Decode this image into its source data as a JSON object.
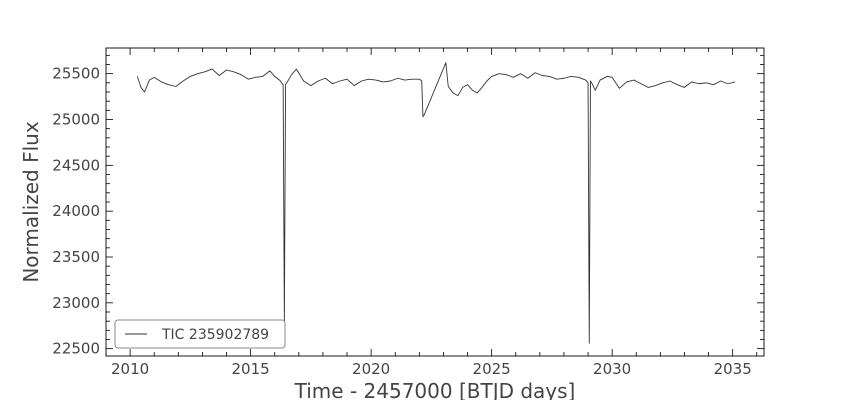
{
  "chart_data": {
    "type": "line",
    "title": "",
    "xlabel": "Time - 2457000 [BTJD days]",
    "ylabel": "Normalized Flux",
    "xlim": [
      2009.0,
      2036.3
    ],
    "ylim": [
      22420,
      25780
    ],
    "xticks": [
      2010,
      2015,
      2020,
      2025,
      2030,
      2035
    ],
    "yticks": [
      22500,
      23000,
      23500,
      24000,
      24500,
      25000,
      25500
    ],
    "grid": false,
    "legend": "lower-left",
    "line_color": "#333333",
    "series": [
      {
        "name": "TIC 235902789",
        "x": [
          2010.3,
          2010.45,
          2010.6,
          2010.8,
          2011.0,
          2011.3,
          2011.6,
          2011.9,
          2012.2,
          2012.5,
          2012.8,
          2013.1,
          2013.4,
          2013.7,
          2014.0,
          2014.3,
          2014.6,
          2014.9,
          2015.2,
          2015.5,
          2015.8,
          2016.0,
          2016.2,
          2016.35,
          2016.4,
          2016.45,
          2016.5,
          2016.7,
          2016.9,
          2017.2,
          2017.5,
          2017.8,
          2018.1,
          2018.4,
          2018.7,
          2019.0,
          2019.3,
          2019.6,
          2019.9,
          2020.2,
          2020.5,
          2020.8,
          2021.1,
          2021.4,
          2021.7,
          2022.0,
          2022.1,
          2022.15,
          2022.2,
          2023.1,
          2023.2,
          2023.4,
          2023.6,
          2023.8,
          2024.0,
          2024.2,
          2024.4,
          2024.6,
          2024.8,
          2025.0,
          2025.3,
          2025.6,
          2025.9,
          2026.2,
          2026.5,
          2026.8,
          2027.1,
          2027.4,
          2027.7,
          2028.0,
          2028.3,
          2028.6,
          2028.9,
          2029.0,
          2029.05,
          2029.1,
          2029.15,
          2029.3,
          2029.5,
          2029.8,
          2030.0,
          2030.3,
          2030.6,
          2030.9,
          2031.2,
          2031.5,
          2031.8,
          2032.1,
          2032.4,
          2032.7,
          2033.0,
          2033.3,
          2033.6,
          2033.9,
          2034.2,
          2034.5,
          2034.8,
          2035.1
        ],
        "y": [
          25470,
          25350,
          25300,
          25430,
          25460,
          25410,
          25380,
          25360,
          25420,
          25470,
          25500,
          25520,
          25550,
          25480,
          25540,
          25520,
          25490,
          25440,
          25460,
          25470,
          25530,
          25470,
          25430,
          25380,
          22800,
          25380,
          25400,
          25490,
          25550,
          25420,
          25370,
          25420,
          25450,
          25390,
          25420,
          25440,
          25370,
          25420,
          25440,
          25430,
          25410,
          25420,
          25450,
          25430,
          25440,
          25440,
          25420,
          25030,
          25050,
          25620,
          25360,
          25290,
          25260,
          25350,
          25380,
          25320,
          25290,
          25350,
          25420,
          25470,
          25500,
          25490,
          25460,
          25500,
          25450,
          25510,
          25480,
          25470,
          25440,
          25450,
          25470,
          25460,
          25430,
          25400,
          22560,
          25420,
          25400,
          25320,
          25430,
          25470,
          25460,
          25340,
          25410,
          25430,
          25390,
          25350,
          25370,
          25400,
          25420,
          25380,
          25350,
          25410,
          25390,
          25400,
          25380,
          25420,
          25390,
          25410
        ]
      }
    ]
  }
}
